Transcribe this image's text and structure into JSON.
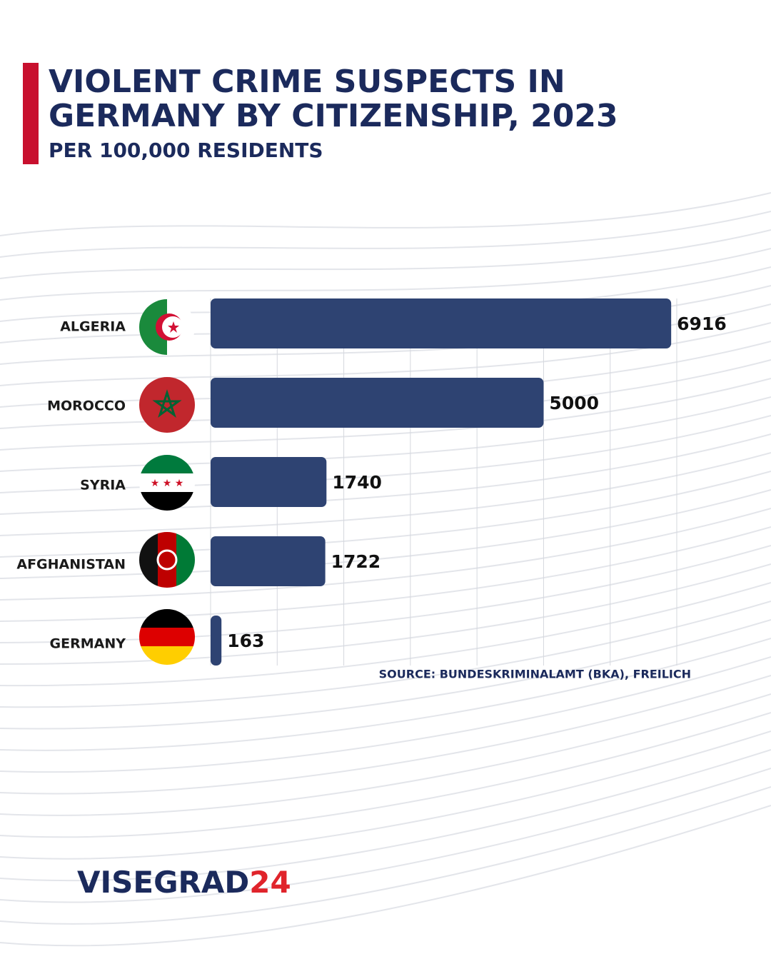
{
  "chart_data": {
    "type": "bar",
    "orientation": "horizontal",
    "title_lines": [
      "VIOLENT CRIME SUSPECTS IN",
      "GERMANY BY CITIZENSHIP, 2023"
    ],
    "subtitle": "PER 100,000 RESIDENTS",
    "categories": [
      "ALGERIA",
      "MOROCCO",
      "SYRIA",
      "AFGHANISTAN",
      "GERMANY"
    ],
    "values": [
      6916,
      5000,
      1740,
      1722,
      163
    ],
    "color": "#2e4372",
    "xlim": [
      0,
      7000
    ],
    "gridlines": [
      1000,
      2000,
      3000,
      4000,
      5000,
      6000,
      7000
    ],
    "grid": true,
    "source": "SOURCE:  BUNDESKRIMINALAMT (BKA), FREILICH",
    "logo": [
      "VISEGRAD",
      "24"
    ]
  }
}
